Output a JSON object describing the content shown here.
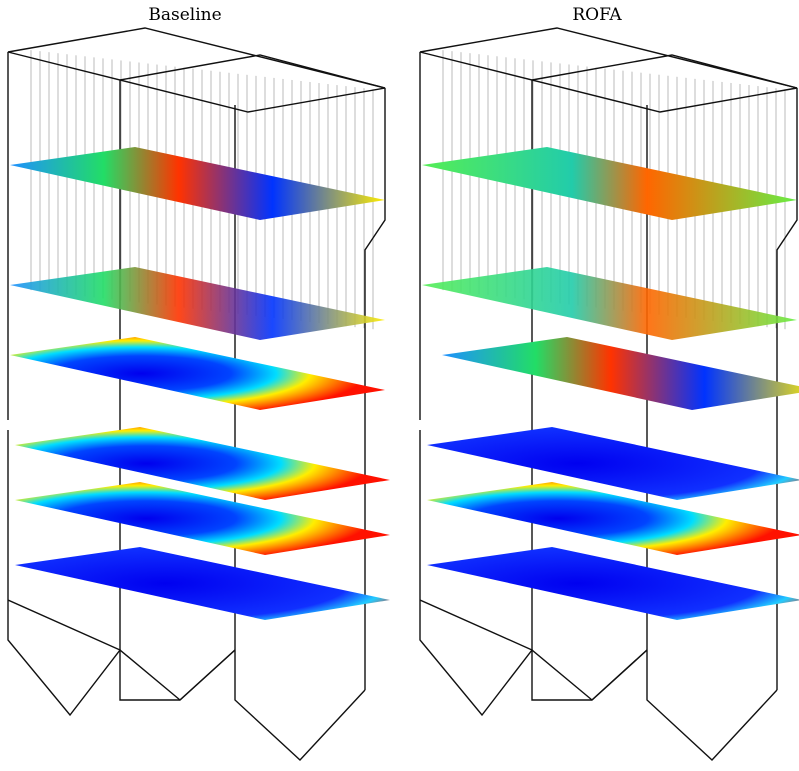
{
  "panels": [
    {
      "title": "Baseline"
    },
    {
      "title": "ROFA"
    }
  ]
}
